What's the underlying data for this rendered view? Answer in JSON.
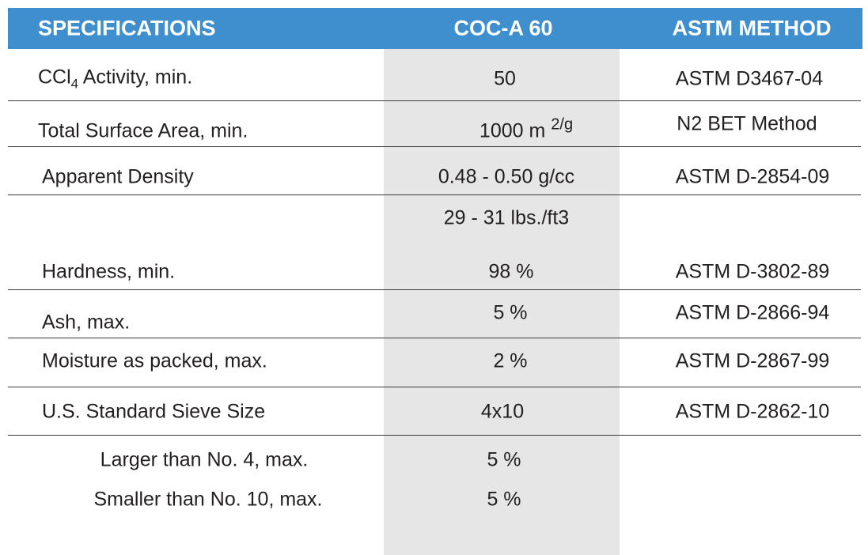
{
  "header": [
    "SPECIFICATIONS",
    "COC-A 60",
    "ASTM METHOD"
  ],
  "rows": [
    {
      "spec": [
        "CCl",
        "4",
        " Activity, min."
      ],
      "value": "50",
      "method": "ASTM D3467-04"
    },
    {
      "spec": "Total Surface Area, min.",
      "value": [
        "1000 m ",
        "2/g"
      ],
      "method": "N2 BET Method"
    },
    {
      "spec": "Apparent Density",
      "value": "0.48 - 0.50 g/cc",
      "method": "ASTM D-2854-09"
    },
    {
      "value": "29 - 31 lbs./ft3"
    },
    {
      "spec": "Hardness, min.",
      "value": "98 %",
      "method": "ASTM D-3802-89"
    },
    {
      "spec": "Ash, max.",
      "value": "5 %",
      "method": "ASTM D-2866-94"
    },
    {
      "spec": "Moisture as packed, max.",
      "value": "2 %",
      "method": "ASTM D-2867-99"
    },
    {
      "spec": "U.S. Standard Sieve Size",
      "value": "4x10",
      "method": "ASTM D-2862-10"
    },
    {
      "spec": "Larger than No. 4, max.",
      "value": "5 %"
    },
    {
      "spec": "Smaller than No. 10, max.",
      "value": "5 %"
    }
  ]
}
